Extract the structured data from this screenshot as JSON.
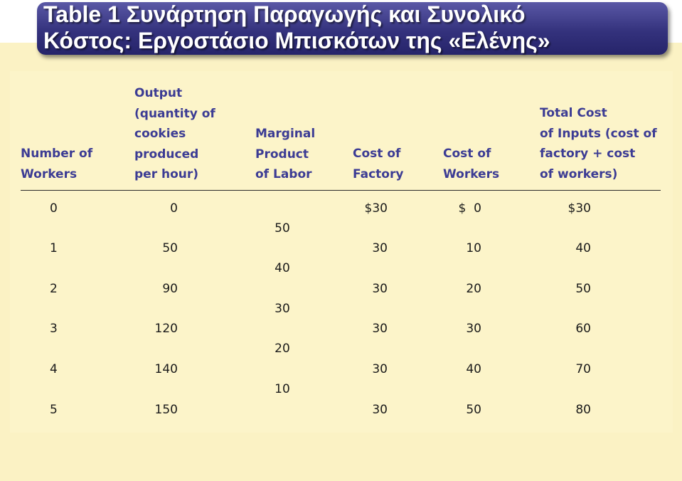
{
  "title": {
    "line1": "Table 1 Συνάρτηση Παραγωγής και Συνολικό",
    "line2": "Κόστος: Εργοστάσιο Μπισκότων της «Ελένης»"
  },
  "headers": {
    "workers": "Number of\nWorkers",
    "output": "Output\n(quantity of\ncookies\nproduced\nper hour)",
    "marginal": "Marginal\nProduct\nof Labor",
    "cost_factory": "Cost of\nFactory",
    "cost_workers": "Cost of\nWorkers",
    "total_cost": "Total Cost\nof Inputs (cost of\nfactory + cost\nof workers)"
  },
  "rows": [
    {
      "workers": "0",
      "output": "0",
      "cost_factory": "$30",
      "cost_workers": "$  0",
      "total_cost": "$30"
    },
    {
      "workers": "1",
      "output": "50",
      "cost_factory": "30",
      "cost_workers": "10",
      "total_cost": "40"
    },
    {
      "workers": "2",
      "output": "90",
      "cost_factory": "30",
      "cost_workers": "20",
      "total_cost": "50"
    },
    {
      "workers": "3",
      "output": "120",
      "cost_factory": "30",
      "cost_workers": "30",
      "total_cost": "60"
    },
    {
      "workers": "4",
      "output": "140",
      "cost_factory": "30",
      "cost_workers": "40",
      "total_cost": "70"
    },
    {
      "workers": "5",
      "output": "150",
      "cost_factory": "30",
      "cost_workers": "50",
      "total_cost": "80"
    }
  ],
  "marginal_products": [
    "50",
    "40",
    "30",
    "20",
    "10"
  ],
  "colors": {
    "banner": "#34327d",
    "header_text": "#3c3c94",
    "table_background": "#fcf4c9"
  }
}
